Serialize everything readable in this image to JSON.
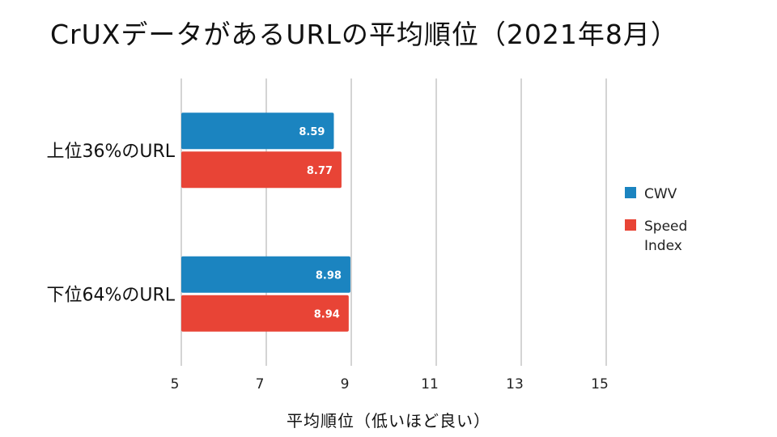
{
  "chart_data": {
    "type": "bar",
    "orientation": "horizontal",
    "title": "CrUXデータがあるURLの平均順位（2021年8月）",
    "xlabel": "平均順位（低いほど良い）",
    "ylabel": "",
    "categories": [
      "上位36%のURL",
      "下位64%のURL"
    ],
    "series": [
      {
        "name": "CWV",
        "color": "#1b84c0",
        "values": [
          8.59,
          8.98
        ]
      },
      {
        "name": "Speed Index",
        "legend_lines": [
          "Speed",
          "Index"
        ],
        "color": "#e84436",
        "values": [
          8.77,
          8.94
        ]
      }
    ],
    "xlim": [
      5,
      15
    ],
    "xticks": [
      5,
      7,
      9,
      11,
      13,
      15
    ],
    "grid": true,
    "legend_position": "right"
  }
}
